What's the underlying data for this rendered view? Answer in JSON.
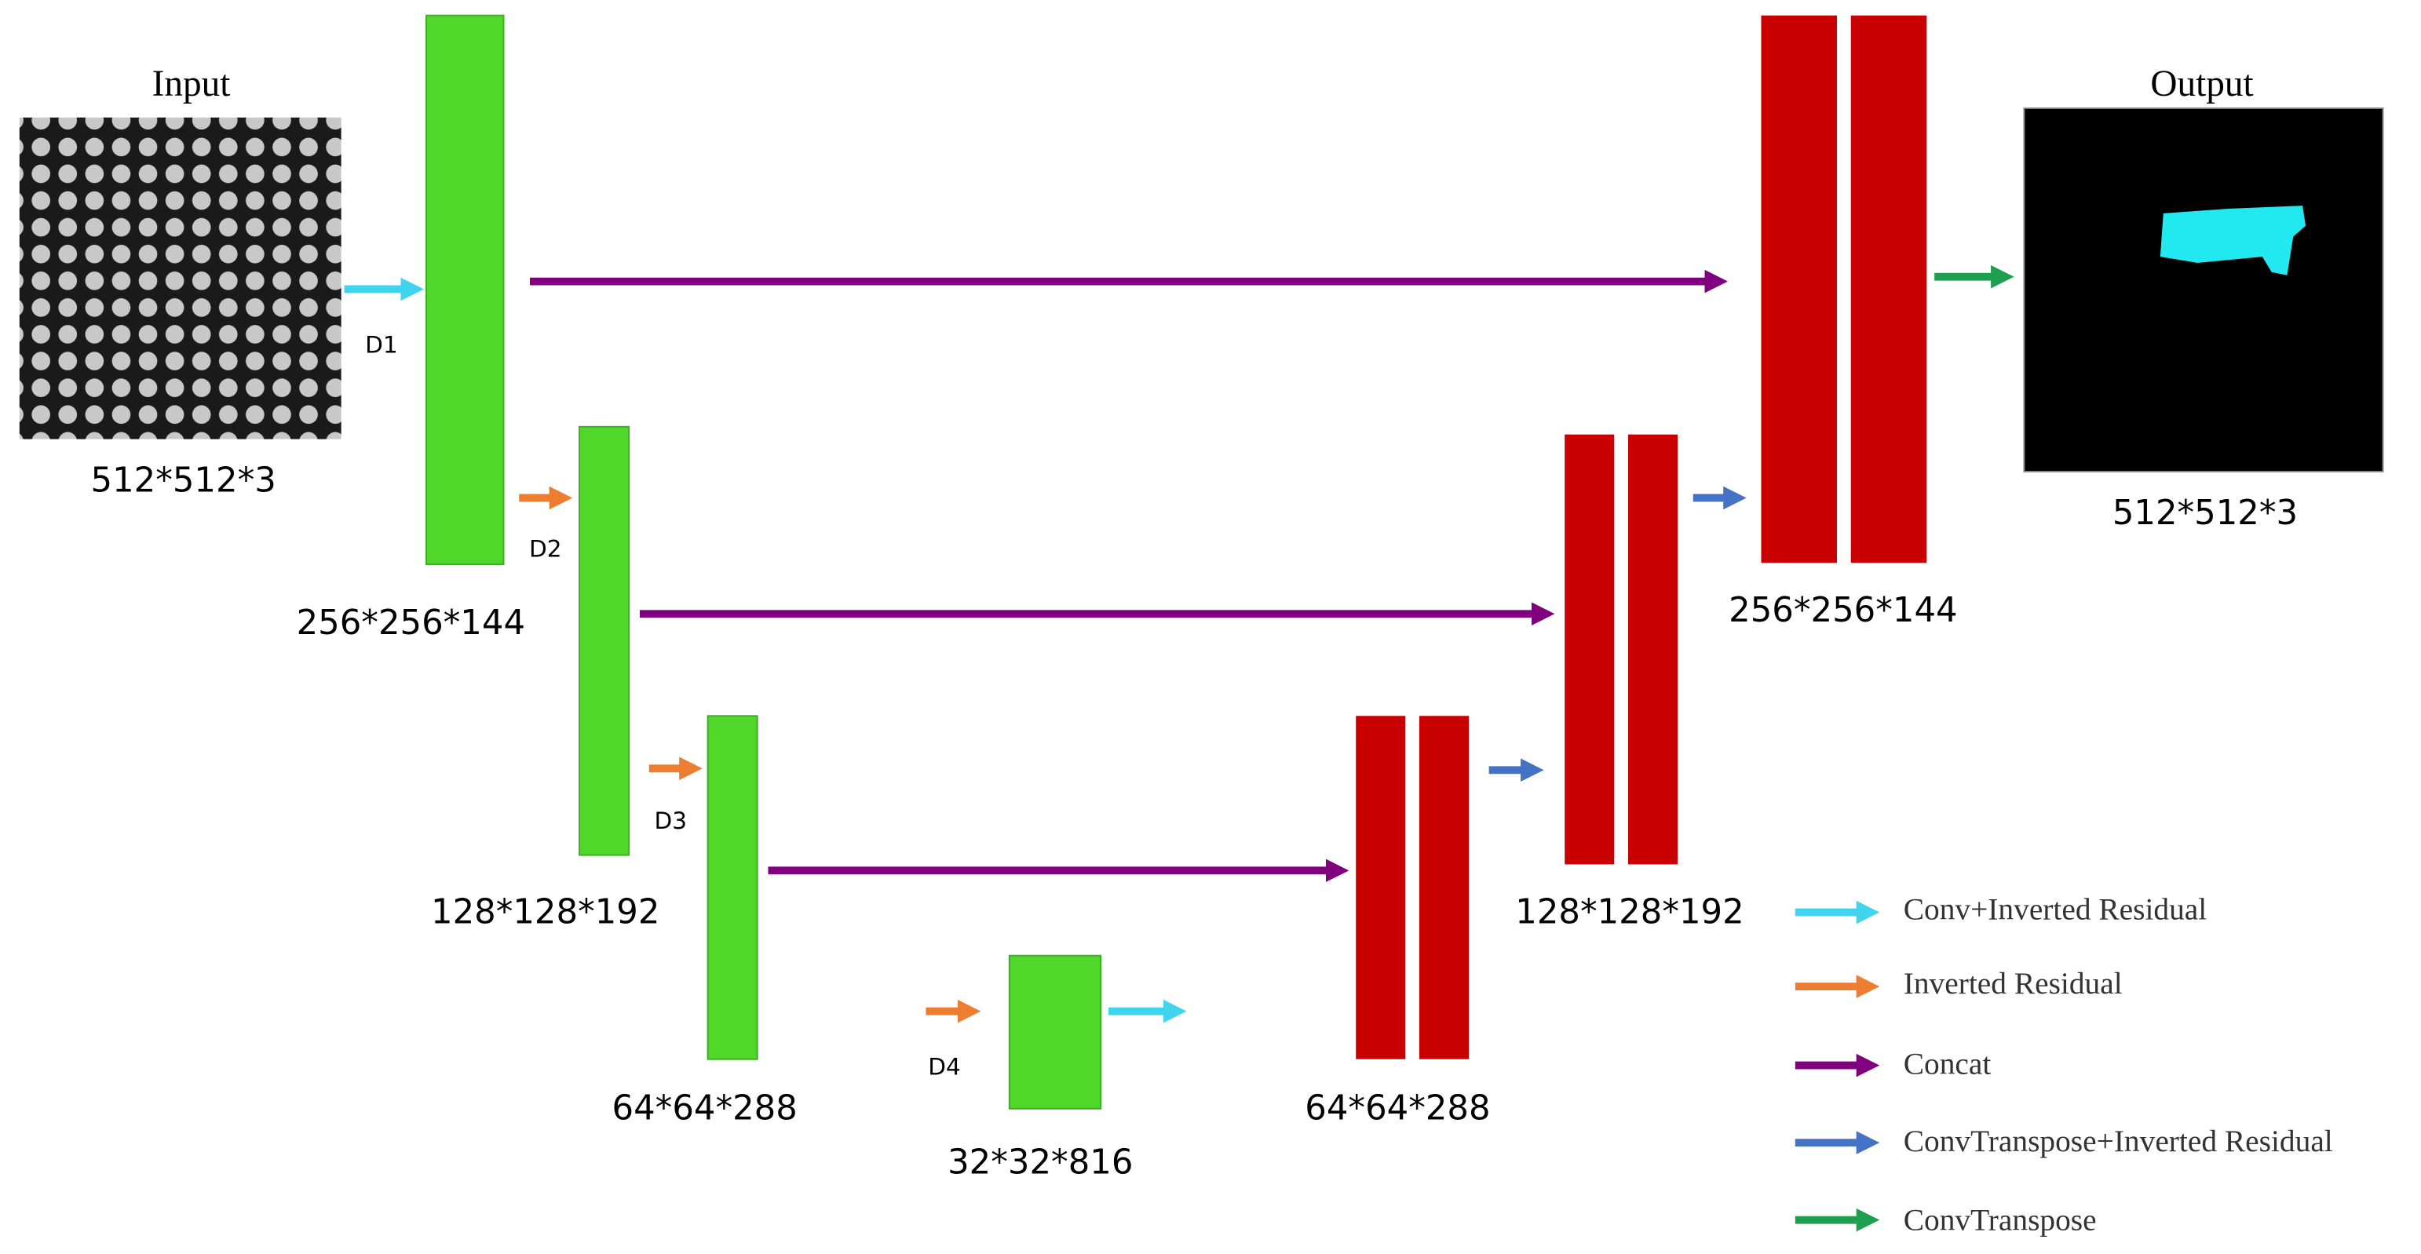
{
  "input": {
    "title": "Input",
    "size": "512*512*3"
  },
  "output": {
    "title": "Output",
    "size": "512*512*3"
  },
  "encoder": [
    {
      "label": "D1",
      "size": "256*256*144"
    },
    {
      "label": "D2",
      "size": "128*128*192"
    },
    {
      "label": "D3",
      "size": "64*64*288"
    },
    {
      "label": "D4",
      "size": "32*32*816"
    }
  ],
  "decoder": [
    {
      "size": "64*64*288"
    },
    {
      "size": "128*128*192"
    },
    {
      "size": "256*256*144"
    }
  ],
  "legend": [
    "Conv+Inverted Residual",
    "Inverted Residual",
    "Concat",
    "ConvTranspose+Inverted Residual",
    "ConvTranspose"
  ]
}
